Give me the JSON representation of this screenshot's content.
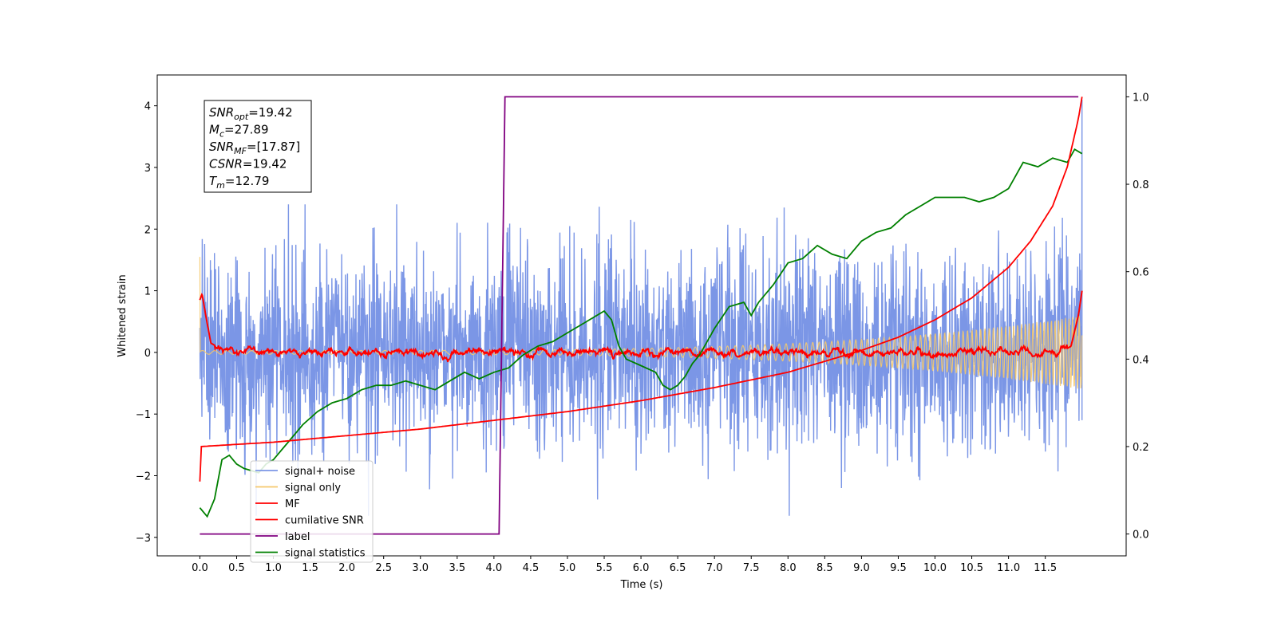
{
  "chart_data": {
    "type": "line",
    "xlabel": "Time (s)",
    "ylabel": "Whitened strain",
    "xlim": [
      -0.58,
      12.6
    ],
    "ylim_left": [
      -3.3,
      4.5
    ],
    "ylim_right": [
      -0.05,
      1.05
    ],
    "x_ticks": [
      "0.0",
      "0.5",
      "1.0",
      "1.5",
      "2.0",
      "2.5",
      "3.0",
      "3.5",
      "4.0",
      "4.5",
      "5.0",
      "5.5",
      "6.0",
      "6.5",
      "7.0",
      "7.5",
      "8.0",
      "8.5",
      "9.0",
      "9.5",
      "10.0",
      "10.5",
      "11.0",
      "11.5"
    ],
    "y_ticks_left": [
      "−3",
      "−2",
      "−1",
      "0",
      "1",
      "2",
      "3",
      "4"
    ],
    "y_ticks_right": [
      "0.0",
      "0.2",
      "0.4",
      "0.6",
      "0.8",
      "1.0"
    ],
    "legend_position": "lower-left",
    "annotation": {
      "lines": [
        {
          "sym": "SNR",
          "sub": "opt",
          "value": "=19.42"
        },
        {
          "sym": "M",
          "sub": "c",
          "value": "=27.89"
        },
        {
          "sym": "SNR",
          "sub": "MF",
          "value": "=[17.87]"
        },
        {
          "sym": "CSNR",
          "sub": "",
          "value": "=19.42"
        },
        {
          "sym": "T",
          "sub": "m",
          "value": "=12.79"
        }
      ]
    },
    "series": [
      {
        "name": "signal+ noise",
        "color": "#7b96e6",
        "axis": "left",
        "description": "white noise with std about 0.8 over 0-12 s, spikes to about +2.4 and -2.6, final spike to +4.1 at 12.0 s",
        "duration": [
          0,
          12.0
        ],
        "noise_amplitude": 0.8,
        "final_spike": 4.1
      },
      {
        "name": "signal only",
        "color": "#f5c96b",
        "axis": "left",
        "description": "chirp oscillation around 0 with amplitude growing from about 0.03 to about 0.6 near 12 s, initial spike to 1.55 at 0 s",
        "duration": [
          0,
          12.0
        ],
        "start_spike": 1.55,
        "end_amplitude": 0.6
      },
      {
        "name": "MF",
        "color": "#ff0000",
        "axis": "left",
        "description": "matched filter output near 0 with small ripples (about 0.1), starting at 0.9 and ending at 1.0",
        "x": [
          0.0,
          0.03,
          0.08,
          0.15,
          0.3,
          0.6,
          1.0,
          2.0,
          3.0,
          4.0,
          5.0,
          6.0,
          7.0,
          8.0,
          9.0,
          10.0,
          11.0,
          11.7,
          11.85,
          11.95,
          12.0
        ],
        "y": [
          0.85,
          0.95,
          0.6,
          0.15,
          0.05,
          0.02,
          0.0,
          0.0,
          0.0,
          0.0,
          0.0,
          0.0,
          0.0,
          0.0,
          0.0,
          0.0,
          0.0,
          0.0,
          0.1,
          0.6,
          1.0
        ]
      },
      {
        "name": "cumilative SNR",
        "color": "#ff0000",
        "axis": "right",
        "x": [
          0.0,
          0.01,
          0.5,
          1.0,
          2.0,
          3.0,
          4.0,
          5.0,
          6.0,
          7.0,
          8.0,
          9.0,
          9.5,
          10.0,
          10.5,
          11.0,
          11.3,
          11.6,
          11.8,
          11.95,
          12.0
        ],
        "y": [
          0.12,
          0.2,
          0.205,
          0.21,
          0.225,
          0.24,
          0.26,
          0.28,
          0.305,
          0.335,
          0.37,
          0.42,
          0.45,
          0.49,
          0.54,
          0.61,
          0.67,
          0.75,
          0.84,
          0.95,
          1.0
        ]
      },
      {
        "name": "label",
        "color": "#800080",
        "axis": "right",
        "x": [
          0.0,
          4.07,
          4.15,
          11.95
        ],
        "y": [
          0.0,
          0.0,
          1.0,
          1.0
        ]
      },
      {
        "name": "signal statistics",
        "color": "#008000",
        "axis": "right",
        "x": [
          0.0,
          0.1,
          0.2,
          0.3,
          0.4,
          0.5,
          0.6,
          0.7,
          0.8,
          0.9,
          1.0,
          1.2,
          1.4,
          1.6,
          1.8,
          2.0,
          2.2,
          2.4,
          2.6,
          2.8,
          3.0,
          3.2,
          3.4,
          3.6,
          3.8,
          4.0,
          4.2,
          4.4,
          4.6,
          4.8,
          5.0,
          5.2,
          5.4,
          5.5,
          5.6,
          5.7,
          5.8,
          6.0,
          6.2,
          6.3,
          6.4,
          6.5,
          6.6,
          6.7,
          6.8,
          7.0,
          7.2,
          7.4,
          7.5,
          7.6,
          7.8,
          8.0,
          8.2,
          8.4,
          8.6,
          8.8,
          9.0,
          9.2,
          9.4,
          9.6,
          9.8,
          10.0,
          10.2,
          10.4,
          10.6,
          10.8,
          11.0,
          11.1,
          11.2,
          11.4,
          11.6,
          11.8,
          11.9,
          12.0
        ],
        "y": [
          0.06,
          0.04,
          0.08,
          0.17,
          0.18,
          0.16,
          0.15,
          0.145,
          0.14,
          0.16,
          0.17,
          0.21,
          0.25,
          0.28,
          0.3,
          0.31,
          0.33,
          0.34,
          0.34,
          0.35,
          0.34,
          0.33,
          0.35,
          0.37,
          0.355,
          0.37,
          0.38,
          0.41,
          0.43,
          0.44,
          0.46,
          0.48,
          0.5,
          0.51,
          0.49,
          0.43,
          0.4,
          0.385,
          0.37,
          0.34,
          0.33,
          0.34,
          0.36,
          0.39,
          0.41,
          0.47,
          0.52,
          0.53,
          0.5,
          0.53,
          0.57,
          0.62,
          0.63,
          0.66,
          0.64,
          0.63,
          0.67,
          0.69,
          0.7,
          0.73,
          0.75,
          0.77,
          0.77,
          0.77,
          0.76,
          0.77,
          0.79,
          0.82,
          0.85,
          0.84,
          0.86,
          0.85,
          0.88,
          0.87
        ]
      }
    ]
  }
}
